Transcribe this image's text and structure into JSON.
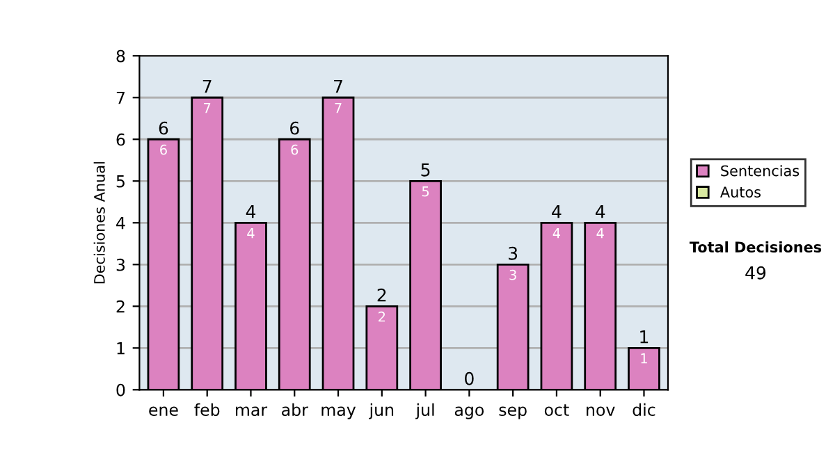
{
  "chart_data": {
    "type": "bar",
    "stacked": true,
    "ylabel": "Decisiones Anual",
    "categories": [
      "ene",
      "feb",
      "mar",
      "abr",
      "may",
      "jun",
      "jul",
      "ago",
      "sep",
      "oct",
      "nov",
      "dic"
    ],
    "series": [
      {
        "name": "Sentencias",
        "color": "#dc82c0",
        "values": [
          6,
          7,
          4,
          6,
          7,
          2,
          5,
          0,
          3,
          4,
          4,
          1
        ],
        "value_labels": [
          "6",
          "7",
          "4",
          "6",
          "7",
          "2",
          "5",
          null,
          "3",
          "4",
          "4",
          "1"
        ]
      },
      {
        "name": "Autos",
        "color": "#d8e8a0",
        "values": [
          0,
          0,
          0,
          0,
          0,
          0,
          0,
          0,
          0,
          0,
          0,
          0
        ]
      }
    ],
    "totals": [
      "6",
      "7",
      "4",
      "6",
      "7",
      "2",
      "5",
      "0",
      "3",
      "4",
      "4",
      "1"
    ],
    "ylim": [
      0,
      8
    ],
    "yticks": [
      0,
      1,
      2,
      3,
      4,
      5,
      6,
      7,
      8
    ],
    "grid": "y",
    "legend": "right",
    "annotations": [
      "Total Decisiones",
      "49"
    ]
  }
}
